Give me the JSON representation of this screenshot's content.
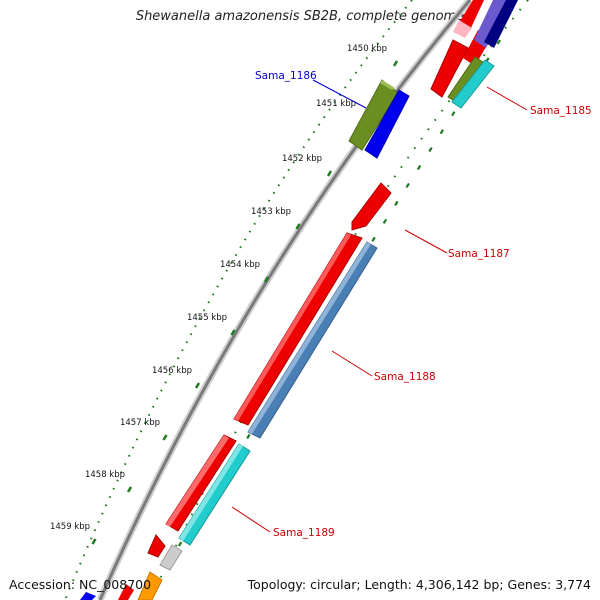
{
  "title": "Shewanella amazonensis SB2B, complete genome",
  "accession": "Accession: NC_008700",
  "topology": "Topology: circular; Length: 4,306,142 bp; Genes: 3,774",
  "ruler": [
    {
      "label": "1450 kbp",
      "kb": 1450
    },
    {
      "label": "1451 kbp",
      "kb": 1451
    },
    {
      "label": "1452 kbp",
      "kb": 1452
    },
    {
      "label": "1453 kbp",
      "kb": 1453
    },
    {
      "label": "1454 kbp",
      "kb": 1454
    },
    {
      "label": "1455 kbp",
      "kb": 1455
    },
    {
      "label": "1456 kbp",
      "kb": 1456
    },
    {
      "label": "1457 kbp",
      "kb": 1457
    },
    {
      "label": "1458 kbp",
      "kb": 1458
    },
    {
      "label": "1459 kbp",
      "kb": 1459
    }
  ],
  "gene_labels": [
    {
      "name": "Sama_1185",
      "color": "#cc0000"
    },
    {
      "name": "Sama_1186",
      "color": "#0000cc"
    },
    {
      "name": "Sama_1187",
      "color": "#cc0000"
    },
    {
      "name": "Sama_1188",
      "color": "#cc0000"
    },
    {
      "name": "Sama_1189",
      "color": "#cc0000"
    }
  ],
  "colors": {
    "backbone": "#8a8a8a",
    "ruler_dots": "#1f7a1f",
    "red": "#ee0000",
    "blue": "#0000ee",
    "olive": "#6b8e23",
    "steelblue": "#4a7fb5",
    "cyan": "#22cccc",
    "orange": "#ff9900",
    "gray": "#cccccc",
    "navy": "#000080",
    "slateblue": "#6a5acd",
    "pink": "#ffb6c1"
  }
}
